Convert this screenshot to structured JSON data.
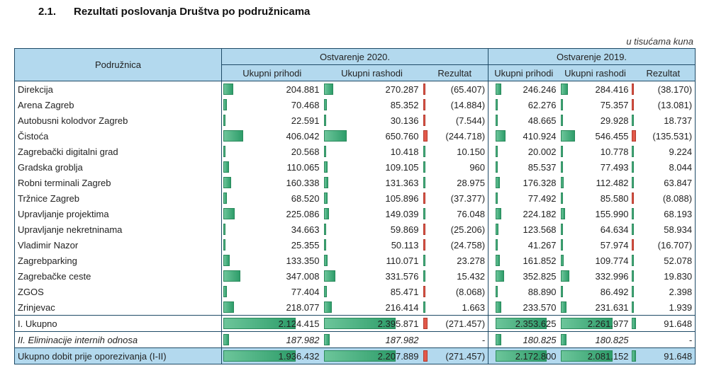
{
  "heading": {
    "number": "2.1.",
    "title": "Rezultati poslovanja Društva po podružnicama"
  },
  "unit_note": "u tisućama kuna",
  "columns": {
    "branch": "Podružnica",
    "year2020": "Ostvarenje 2020.",
    "year2019": "Ostvarenje 2019.",
    "income": "Ukupni prihodi",
    "expense": "Ukupni rashodi",
    "result": "Rezultat"
  },
  "rows": [
    {
      "name": "Direkcija",
      "i20": "204.881",
      "e20": "270.287",
      "r20": "(65.407)",
      "i19": "246.246",
      "e19": "284.416",
      "r19": "(38.170)"
    },
    {
      "name": "Arena Zagreb",
      "i20": "70.468",
      "e20": "85.352",
      "r20": "(14.884)",
      "i19": "62.276",
      "e19": "75.357",
      "r19": "(13.081)"
    },
    {
      "name": "Autobusni kolodvor Zagreb",
      "i20": "22.591",
      "e20": "30.136",
      "r20": "(7.544)",
      "i19": "48.665",
      "e19": "29.928",
      "r19": "18.737"
    },
    {
      "name": "Čistoća",
      "i20": "406.042",
      "e20": "650.760",
      "r20": "(244.718)",
      "i19": "410.924",
      "e19": "546.455",
      "r19": "(135.531)"
    },
    {
      "name": "Zagrebački digitalni grad",
      "i20": "20.568",
      "e20": "10.418",
      "r20": "10.150",
      "i19": "20.002",
      "e19": "10.778",
      "r19": "9.224"
    },
    {
      "name": "Gradska groblja",
      "i20": "110.065",
      "e20": "109.105",
      "r20": "960",
      "i19": "85.537",
      "e19": "77.493",
      "r19": "8.044"
    },
    {
      "name": "Robni terminali Zagreb",
      "i20": "160.338",
      "e20": "131.363",
      "r20": "28.975",
      "i19": "176.328",
      "e19": "112.482",
      "r19": "63.847"
    },
    {
      "name": "Tržnice Zagreb",
      "i20": "68.520",
      "e20": "105.896",
      "r20": "(37.377)",
      "i19": "77.492",
      "e19": "85.580",
      "r19": "(8.088)"
    },
    {
      "name": "Upravljanje projektima",
      "i20": "225.086",
      "e20": "149.039",
      "r20": "76.048",
      "i19": "224.182",
      "e19": "155.990",
      "r19": "68.193"
    },
    {
      "name": "Upravljanje nekretninama",
      "i20": "34.663",
      "e20": "59.869",
      "r20": "(25.206)",
      "i19": "123.568",
      "e19": "64.634",
      "r19": "58.934"
    },
    {
      "name": "Vladimir Nazor",
      "i20": "25.355",
      "e20": "50.113",
      "r20": "(24.758)",
      "i19": "41.267",
      "e19": "57.974",
      "r19": "(16.707)"
    },
    {
      "name": "Zagrebparking",
      "i20": "133.350",
      "e20": "110.071",
      "r20": "23.278",
      "i19": "161.852",
      "e19": "109.774",
      "r19": "52.078"
    },
    {
      "name": "Zagrebačke ceste",
      "i20": "347.008",
      "e20": "331.576",
      "r20": "15.432",
      "i19": "352.825",
      "e19": "332.996",
      "r19": "19.830"
    },
    {
      "name": "ZGOS",
      "i20": "77.404",
      "e20": "85.471",
      "r20": "(8.068)",
      "i19": "88.890",
      "e19": "86.492",
      "r19": "2.398"
    },
    {
      "name": "Zrinjevac",
      "i20": "218.077",
      "e20": "216.414",
      "r20": "1.663",
      "i19": "233.570",
      "e19": "231.631",
      "r19": "1.939"
    }
  ],
  "total": {
    "name": "I. Ukupno",
    "i20": "2.124.415",
    "e20": "2.395.871",
    "r20": "(271.457)",
    "i19": "2.353.625",
    "e19": "2.261.977",
    "r19": "91.648"
  },
  "elim": {
    "name": "II. Eliminacije internih odnosa",
    "i20": "187.982",
    "e20": "187.982",
    "r20": "-",
    "i19": "180.825",
    "e19": "180.825",
    "r19": "-"
  },
  "profit": {
    "name": "Ukupno dobit prije oporezivanja (I-II)",
    "i20": "1.936.432",
    "e20": "2.207.889",
    "r20": "(271.457)",
    "i19": "2.172.800",
    "e19": "2.081.152",
    "r19": "91.648"
  }
}
